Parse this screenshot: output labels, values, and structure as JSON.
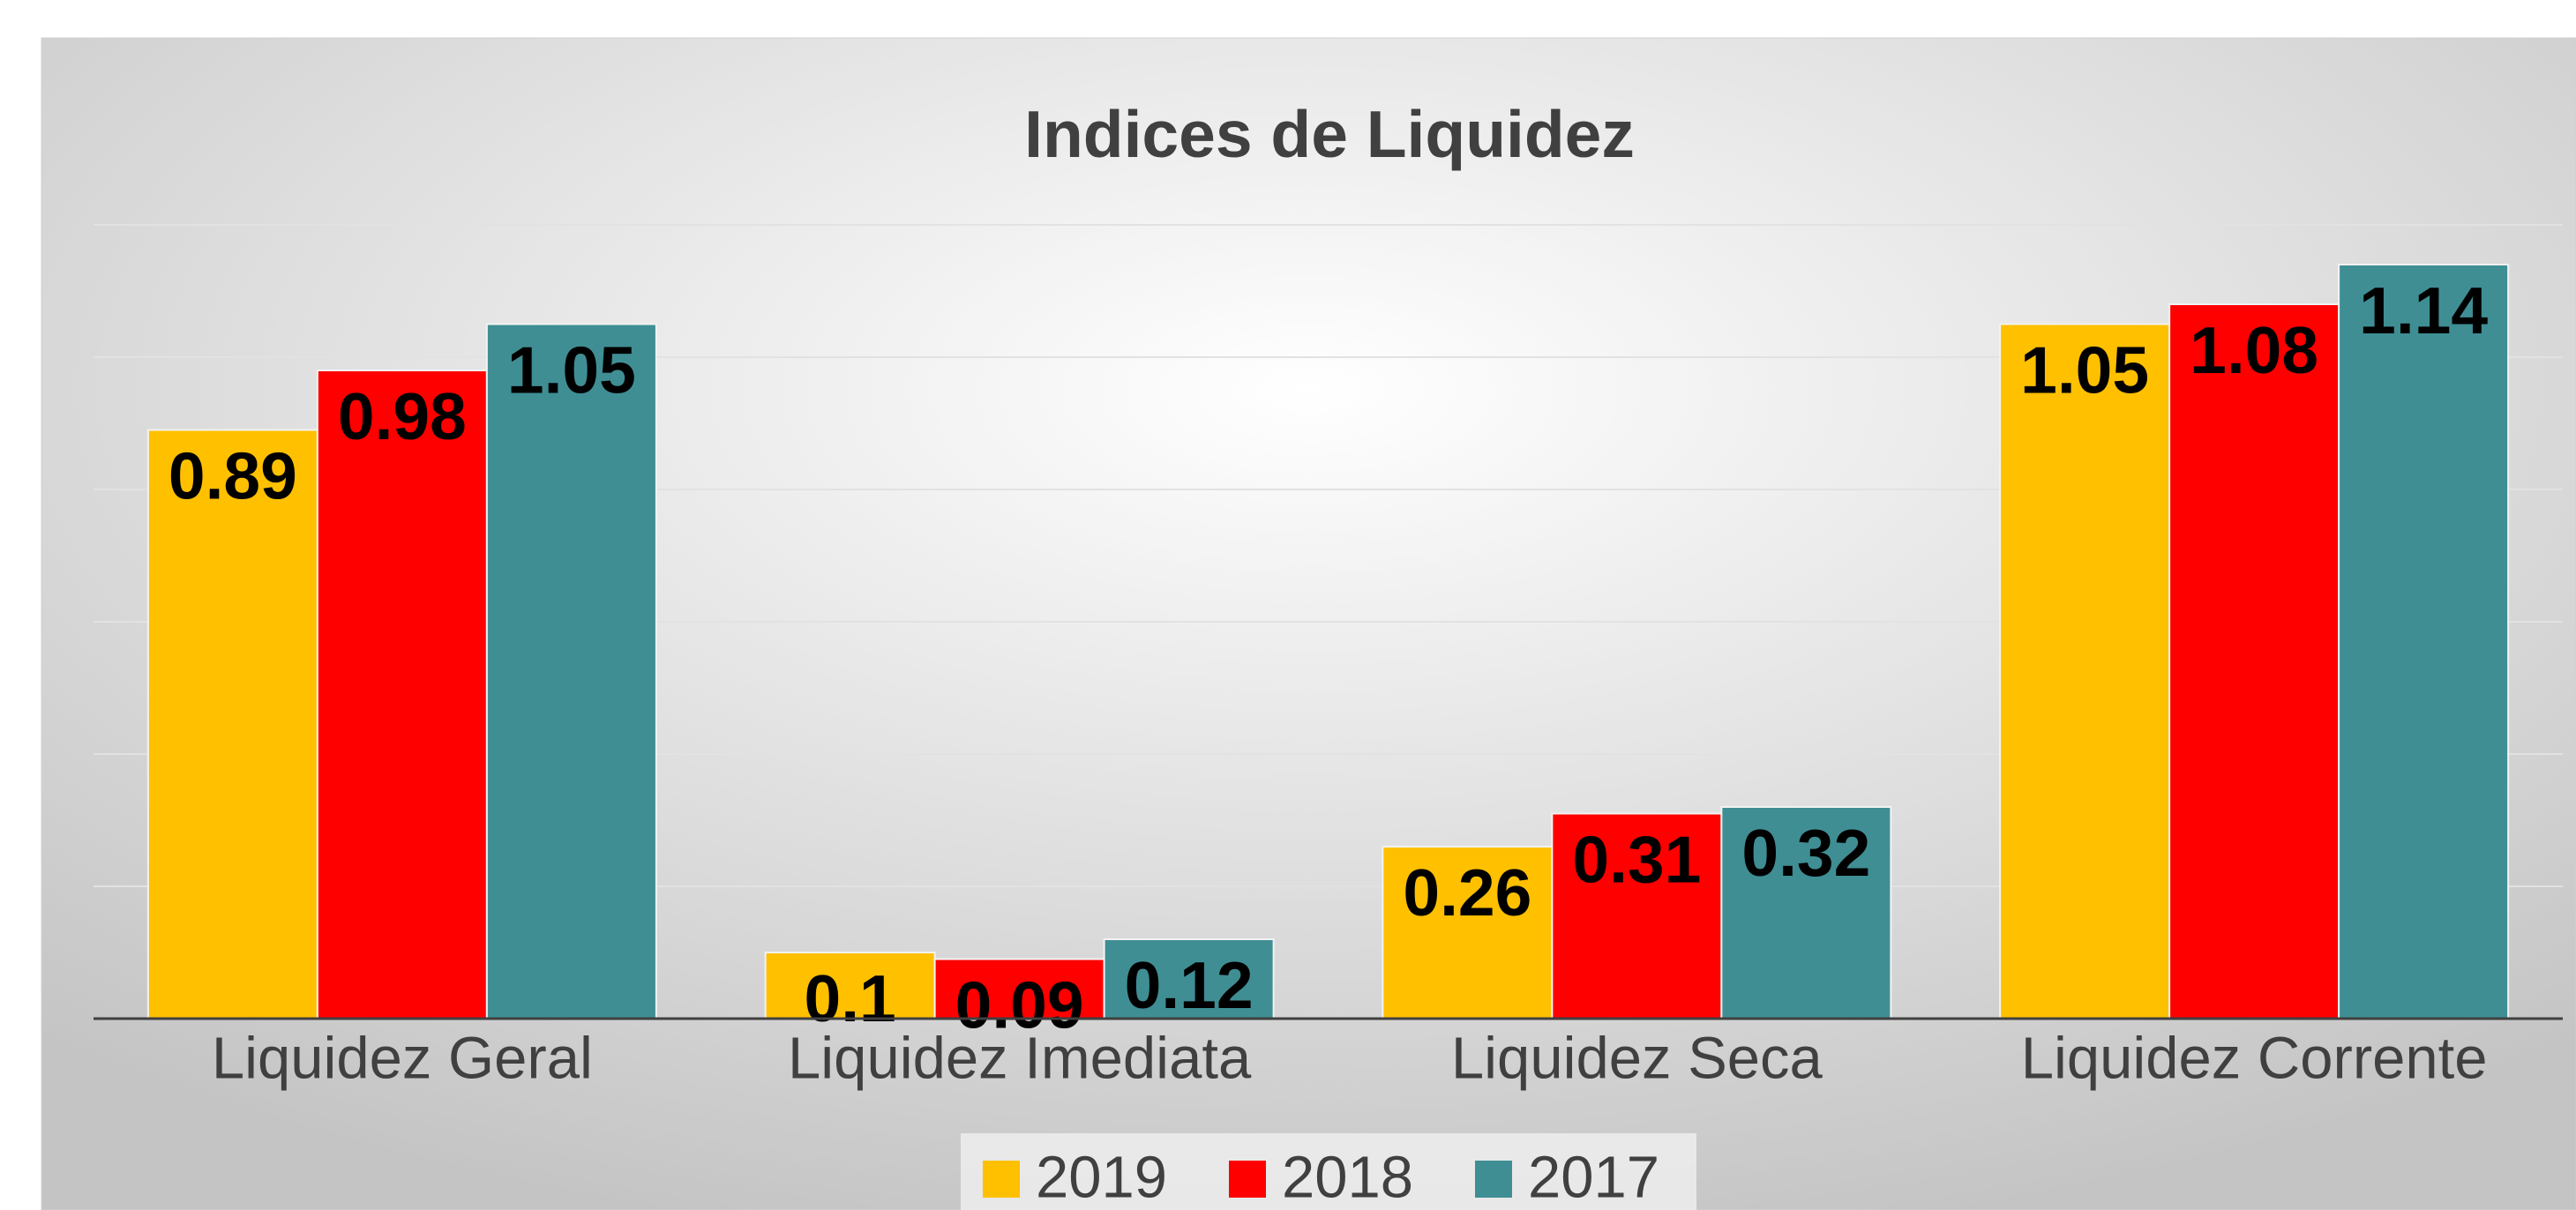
{
  "chart_data": {
    "type": "bar",
    "title": "Indices de Liquidez",
    "categories": [
      "Liquidez Geral",
      "Liquidez Imediata",
      "Liquidez Seca",
      "Liquidez Corrente"
    ],
    "series": [
      {
        "name": "2019",
        "color": "#FFC000",
        "values": [
          0.89,
          0.1,
          0.26,
          1.05
        ]
      },
      {
        "name": "2018",
        "color": "#FF0000",
        "values": [
          0.98,
          0.09,
          0.31,
          1.08
        ]
      },
      {
        "name": "2017",
        "color": "#3F8E94",
        "values": [
          1.05,
          0.12,
          0.32,
          1.14
        ]
      }
    ],
    "ylim": [
      0,
      1.2
    ],
    "yticks": [
      0,
      0.2,
      0.4,
      0.6,
      0.8,
      1,
      1.2
    ],
    "grid": true,
    "legend": "bottom"
  }
}
